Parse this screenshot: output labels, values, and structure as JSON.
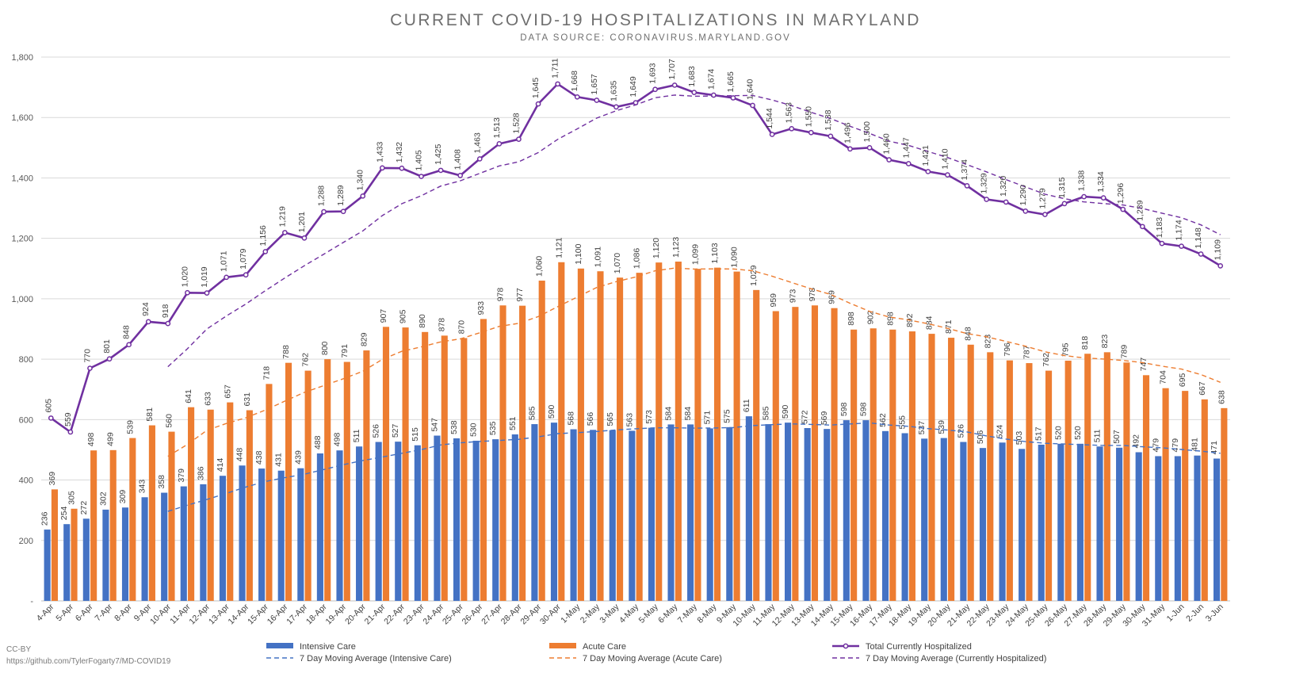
{
  "chart_data": {
    "type": "bar",
    "title": "CURRENT COVID-19 HOSPITALIZATIONS IN MARYLAND",
    "subtitle": "DATA SOURCE: CORONAVIRUS.MARYLAND.GOV",
    "xlabel": "",
    "ylabel": "",
    "ylim": [
      0,
      1800
    ],
    "yticks": [
      0,
      200,
      400,
      600,
      800,
      1000,
      1200,
      1400,
      1600,
      1800
    ],
    "ytick_labels": [
      "-",
      "200",
      "400",
      "600",
      "800",
      "1,000",
      "1,200",
      "1,400",
      "1,600",
      "1,800"
    ],
    "grid": true,
    "legend_position": "bottom",
    "categories": [
      "4-Apr",
      "5-Apr",
      "6-Apr",
      "7-Apr",
      "8-Apr",
      "9-Apr",
      "10-Apr",
      "11-Apr",
      "12-Apr",
      "13-Apr",
      "14-Apr",
      "15-Apr",
      "16-Apr",
      "17-Apr",
      "18-Apr",
      "19-Apr",
      "20-Apr",
      "21-Apr",
      "22-Apr",
      "23-Apr",
      "24-Apr",
      "25-Apr",
      "26-Apr",
      "27-Apr",
      "28-Apr",
      "29-Apr",
      "30-Apr",
      "1-May",
      "2-May",
      "3-May",
      "4-May",
      "5-May",
      "6-May",
      "7-May",
      "8-May",
      "9-May",
      "10-May",
      "11-May",
      "12-May",
      "13-May",
      "14-May",
      "15-May",
      "16-May",
      "17-May",
      "18-May",
      "19-May",
      "20-May",
      "21-May",
      "22-May",
      "23-May",
      "24-May",
      "25-May",
      "26-May",
      "27-May",
      "28-May",
      "29-May",
      "30-May",
      "31-May",
      "1-Jun",
      "2-Jun",
      "3-Jun"
    ],
    "series": [
      {
        "name": "Intensive Care",
        "kind": "bar",
        "color": "#4472c4",
        "values": [
          236,
          254,
          272,
          302,
          309,
          343,
          358,
          379,
          386,
          414,
          448,
          438,
          431,
          439,
          488,
          498,
          511,
          526,
          527,
          515,
          547,
          538,
          530,
          535,
          551,
          585,
          590,
          568,
          566,
          565,
          563,
          573,
          584,
          584,
          571,
          575,
          611,
          585,
          590,
          572,
          569,
          598,
          598,
          562,
          555,
          537,
          539,
          526,
          506,
          524,
          503,
          517,
          520,
          520,
          511,
          507,
          492,
          479,
          479,
          481,
          471
        ]
      },
      {
        "name": "Acute Care",
        "kind": "bar",
        "color": "#ed7d31",
        "values": [
          369,
          305,
          498,
          499,
          539,
          581,
          560,
          641,
          633,
          657,
          631,
          718,
          788,
          762,
          800,
          791,
          829,
          907,
          905,
          890,
          878,
          870,
          933,
          978,
          977,
          1060,
          1121,
          1100,
          1091,
          1070,
          1086,
          1120,
          1123,
          1099,
          1103,
          1090,
          1029,
          959,
          973,
          978,
          969,
          898,
          902,
          898,
          892,
          884,
          871,
          848,
          823,
          796,
          787,
          762,
          795,
          818,
          823,
          789,
          747,
          704,
          695,
          667,
          638
        ]
      },
      {
        "name": "Total Currently Hospitalized",
        "kind": "line",
        "color": "#7030a0",
        "values": [
          605,
          559,
          770,
          801,
          848,
          924,
          918,
          1020,
          1019,
          1071,
          1079,
          1156,
          1219,
          1201,
          1288,
          1289,
          1340,
          1433,
          1432,
          1405,
          1425,
          1408,
          1463,
          1513,
          1528,
          1645,
          1711,
          1668,
          1657,
          1635,
          1649,
          1693,
          1707,
          1683,
          1674,
          1665,
          1640,
          1544,
          1563,
          1550,
          1538,
          1496,
          1500,
          1460,
          1447,
          1421,
          1410,
          1374,
          1329,
          1320,
          1290,
          1279,
          1315,
          1338,
          1334,
          1296,
          1239,
          1183,
          1174,
          1148,
          1109
        ]
      },
      {
        "name": "7 Day Moving Average (Intensive Care)",
        "kind": "ma",
        "window": 7,
        "of": "Intensive Care",
        "color": "#4472c4"
      },
      {
        "name": "7 Day Moving Average (Acute Care)",
        "kind": "ma",
        "window": 7,
        "of": "Acute Care",
        "color": "#ed7d31"
      },
      {
        "name": "7 Day Moving Average (Currently Hospitalized)",
        "kind": "ma",
        "window": 7,
        "of": "Total Currently Hospitalized",
        "color": "#7030a0"
      }
    ]
  },
  "footer": {
    "license": "CC-BY",
    "url": "https://github.com/TylerFogarty7/MD-COVID19"
  }
}
